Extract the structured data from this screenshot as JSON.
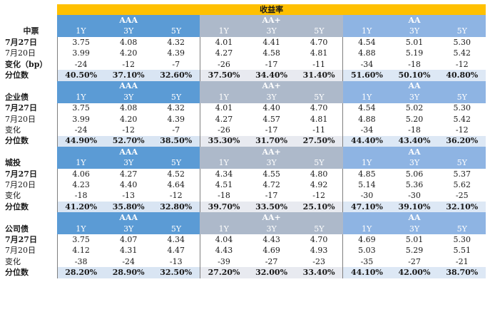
{
  "title": "收益率",
  "sections": [
    {
      "name": "中票",
      "groups": [
        "AAA",
        "AA+",
        "AA"
      ],
      "tenors": [
        "1Y",
        "3Y",
        "5Y",
        "1Y",
        "3Y",
        "5Y",
        "1Y",
        "3Y",
        "5Y"
      ],
      "rows": [
        {
          "label": "7月27日",
          "values": [
            "3.75",
            "4.08",
            "4.32",
            "4.01",
            "4.41",
            "4.70",
            "4.54",
            "5.01",
            "5.30"
          ]
        },
        {
          "label": "7月20日",
          "values": [
            "3.99",
            "4.20",
            "4.39",
            "4.27",
            "4.58",
            "4.81",
            "4.88",
            "5.19",
            "5.42"
          ]
        },
        {
          "label": "变化（bp）",
          "values": [
            "-24",
            "-12",
            "-7",
            "-26",
            "-17",
            "-11",
            "-34",
            "-18",
            "-12"
          ]
        },
        {
          "label": "分位数",
          "values": [
            "40.50%",
            "37.10%",
            "32.60%",
            "37.50%",
            "34.40%",
            "31.40%",
            "51.60%",
            "50.10%",
            "40.80%"
          ]
        }
      ]
    },
    {
      "name": "企业债",
      "groups": [
        "AAA",
        "AA+",
        "AA"
      ],
      "tenors": [
        "1Y",
        "3Y",
        "5Y",
        "1Y",
        "3Y",
        "5Y",
        "1Y",
        "3Y",
        "5Y"
      ],
      "rows": [
        {
          "label": "7月27日",
          "values": [
            "3.75",
            "4.08",
            "4.32",
            "4.01",
            "4.40",
            "4.70",
            "4.54",
            "5.02",
            "5.30"
          ]
        },
        {
          "label": "7月20日",
          "values": [
            "3.99",
            "4.20",
            "4.39",
            "4.27",
            "4.57",
            "4.81",
            "4.88",
            "5.20",
            "5.42"
          ]
        },
        {
          "label": "变化",
          "values": [
            "-24",
            "-12",
            "-7",
            "-26",
            "-17",
            "-11",
            "-34",
            "-18",
            "-12"
          ]
        },
        {
          "label": "分位数",
          "values": [
            "44.90%",
            "52.70%",
            "38.50%",
            "35.30%",
            "31.70%",
            "27.50%",
            "44.40%",
            "43.40%",
            "36.20%"
          ]
        }
      ]
    },
    {
      "name": "城投",
      "groups": [
        "AAA",
        "AA+",
        "AA"
      ],
      "tenors": [
        "1Y",
        "3Y",
        "5Y",
        "1Y",
        "3Y",
        "5Y",
        "1Y",
        "3Y",
        "5Y"
      ],
      "rows": [
        {
          "label": "7月27日",
          "values": [
            "4.06",
            "4.27",
            "4.52",
            "4.34",
            "4.55",
            "4.80",
            "4.85",
            "5.06",
            "5.37"
          ]
        },
        {
          "label": "7月20日",
          "values": [
            "4.23",
            "4.40",
            "4.64",
            "4.51",
            "4.72",
            "4.92",
            "5.14",
            "5.36",
            "5.62"
          ]
        },
        {
          "label": "变化",
          "values": [
            "-18",
            "-13",
            "-12",
            "-18",
            "-17",
            "-12",
            "-30",
            "-30",
            "-25"
          ]
        },
        {
          "label": "分位数",
          "values": [
            "41.20%",
            "35.80%",
            "32.80%",
            "39.70%",
            "33.50%",
            "25.10%",
            "47.10%",
            "39.10%",
            "32.10%"
          ]
        }
      ]
    },
    {
      "name": "公司债",
      "groups": [
        "AAA",
        "AA+",
        "AA"
      ],
      "tenors": [
        "1Y",
        "3Y",
        "5Y",
        "1Y",
        "3Y",
        "5Y",
        "1Y",
        "3Y",
        "5Y"
      ],
      "rows": [
        {
          "label": "7月27日",
          "values": [
            "3.75",
            "4.07",
            "4.34",
            "4.04",
            "4.43",
            "4.70",
            "4.69",
            "5.01",
            "5.30"
          ]
        },
        {
          "label": "7月20日",
          "values": [
            "4.12",
            "4.31",
            "4.47",
            "4.43",
            "4.69",
            "4.93",
            "5.03",
            "5.29",
            "5.51"
          ]
        },
        {
          "label": "变化",
          "values": [
            "-38",
            "-24",
            "-13",
            "-39",
            "-27",
            "-23",
            "-35",
            "-27",
            "-21"
          ]
        },
        {
          "label": "分位数",
          "values": [
            "28.20%",
            "28.90%",
            "32.50%",
            "27.20%",
            "32.00%",
            "33.40%",
            "44.10%",
            "42.00%",
            "38.70%"
          ]
        }
      ]
    }
  ],
  "colors": {
    "title_fill": "#ffc000",
    "group_aaa": "#5b9bd5",
    "group_aa_plus": "#adb9ca",
    "group_aa": "#8eb4e3"
  }
}
